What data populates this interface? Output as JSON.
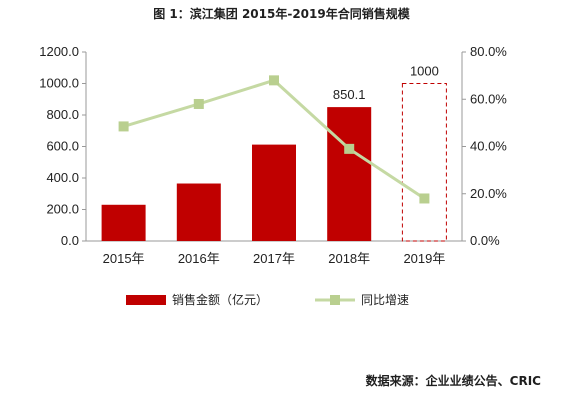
{
  "title": "图 1：滨江集团 2015年-2019年合同销售规模",
  "source": "数据来源：企业业绩公告、CRIC",
  "colors": {
    "bar": "#c00000",
    "line": "#c5d9a3",
    "marker": "#b9cf8f",
    "projected": "#c00000",
    "axis": "#999999"
  },
  "chart_data": {
    "type": "bar",
    "categories": [
      "2015年",
      "2016年",
      "2017年",
      "2018年",
      "2019年"
    ],
    "series": [
      {
        "name": "销售金额（亿元）",
        "type": "bar",
        "axis": "left",
        "values": [
          230,
          365,
          612,
          850.1,
          1000
        ],
        "projected": [
          false,
          false,
          false,
          false,
          true
        ],
        "data_labels": [
          "",
          "",
          "",
          "850.1",
          "1000"
        ]
      },
      {
        "name": "同比增速",
        "type": "line",
        "axis": "right",
        "values": [
          0.485,
          0.58,
          0.68,
          0.39,
          0.18
        ]
      }
    ],
    "y_left": {
      "ticks": [
        "0.0",
        "200.0",
        "400.0",
        "600.0",
        "800.0",
        "1000.0",
        "1200.0"
      ],
      "ylim": [
        0,
        1200
      ]
    },
    "y_right": {
      "ticks": [
        "0.0%",
        "20.0%",
        "40.0%",
        "60.0%",
        "80.0%"
      ],
      "ylim": [
        0,
        0.8
      ]
    },
    "legend": [
      "销售金额（亿元）",
      "同比增速"
    ],
    "legend_position": "bottom",
    "grid": false
  }
}
